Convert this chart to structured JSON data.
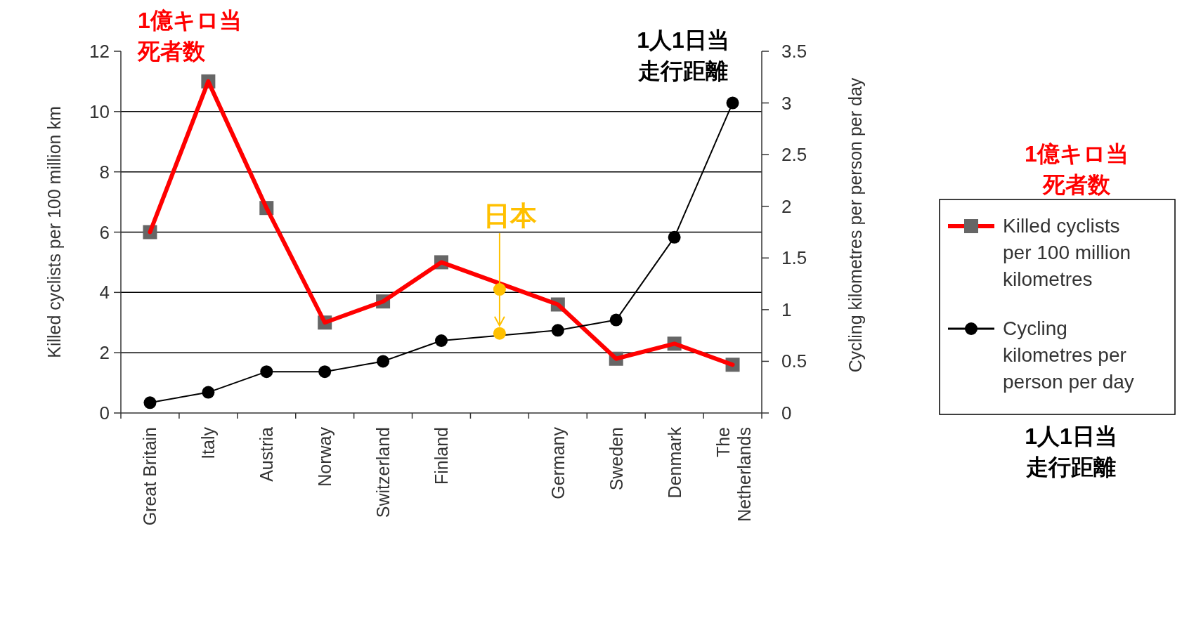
{
  "chart_data": {
    "type": "line",
    "categories": [
      "Great Britain",
      "Italy",
      "Austria",
      "Norway",
      "Switzerland",
      "Finland",
      null,
      "Germany",
      "Sweden",
      "Denmark",
      "The Netherlands"
    ],
    "ylabel": "Killed cyclists per 100 million km",
    "y2label": "Cycling kilometres per person per day",
    "ylim": [
      0,
      12
    ],
    "yticks": [
      0,
      2,
      4,
      6,
      8,
      10,
      12
    ],
    "y2lim": [
      0,
      3.5
    ],
    "y2ticks": [
      0,
      0.5,
      1,
      1.5,
      2,
      2.5,
      3,
      3.5
    ],
    "grid": "y",
    "legend": "right",
    "series": [
      {
        "name": "Killed cyclists per 100 million kilometres",
        "color": "#ff0000",
        "marker": "square",
        "values": [
          6.0,
          11.0,
          6.8,
          3.0,
          3.7,
          5.0,
          null,
          3.6,
          1.8,
          2.3,
          1.6
        ]
      },
      {
        "name": "Cycling kilometres per person per day",
        "color": "#000000",
        "marker": "circle",
        "axis": "y2",
        "values": [
          0.1,
          0.2,
          0.4,
          0.4,
          0.5,
          0.7,
          null,
          0.8,
          0.9,
          1.7,
          3.0
        ]
      },
      {
        "name": "日本",
        "type": "scatter",
        "color": "#ffc000",
        "marker": "circle",
        "values": [
          null,
          null,
          null,
          null,
          null,
          null,
          4.1,
          null,
          null,
          null,
          null
        ]
      },
      {
        "type": "scatter",
        "color": "#ffc000",
        "marker": "circle",
        "axis": "y2",
        "values": [
          null,
          null,
          null,
          null,
          null,
          null,
          0.77,
          null,
          null,
          null,
          null
        ]
      }
    ],
    "annotations": [
      "1億キロ当死者数",
      "1人1日当走行距離",
      "1億キロ当死者数",
      "1人1日当走行距離"
    ]
  }
}
